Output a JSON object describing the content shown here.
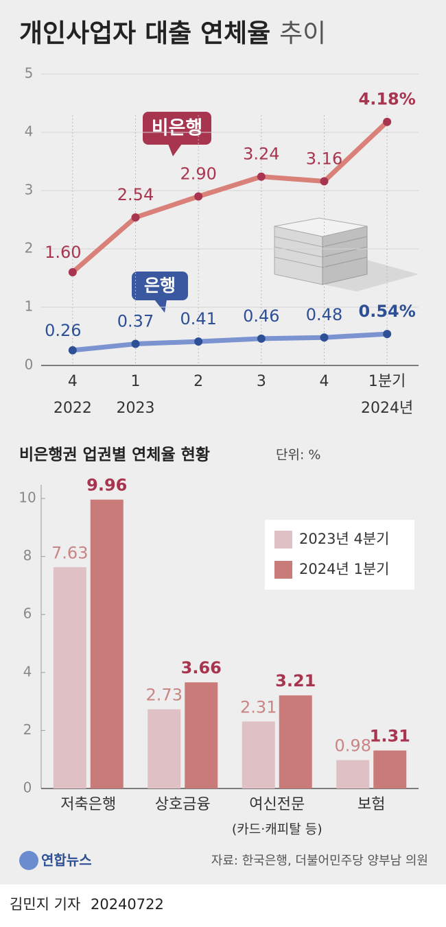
{
  "title": "개인사업자 대출 연체율",
  "title_suffix": "추이",
  "chart_data": [
    {
      "type": "line",
      "categories": [
        "4",
        "1",
        "2",
        "3",
        "4",
        "1분기"
      ],
      "category_sublabels": [
        "2022",
        "2023",
        null,
        null,
        null,
        "2024년"
      ],
      "ylim": [
        0,
        5
      ],
      "yticks": [
        0,
        1,
        2,
        3,
        4,
        5
      ],
      "grid": true,
      "series": [
        {
          "name": "비은행",
          "color": "#d98079",
          "marker_color": "#a8354f",
          "values": [
            1.6,
            2.54,
            2.9,
            3.24,
            3.16,
            4.18
          ],
          "value_labels": [
            "1.60",
            "2.54",
            "2.90",
            "3.24",
            "3.16",
            "4.18%"
          ]
        },
        {
          "name": "은행",
          "color": "#7b93d0",
          "marker_color": "#2d4f95",
          "values": [
            0.26,
            0.37,
            0.41,
            0.46,
            0.48,
            0.54
          ],
          "value_labels": [
            "0.26",
            "0.37",
            "0.41",
            "0.46",
            "0.48",
            "0.54%"
          ]
        }
      ]
    },
    {
      "type": "bar",
      "title": "비은행권 업권별 연체율 현황",
      "unit": "단위: %",
      "categories": [
        "저축은행",
        "상호금융",
        "여신전문",
        "보험"
      ],
      "category_sublabels": [
        null,
        null,
        "(카드·캐피탈 등)",
        null
      ],
      "ylim": [
        0,
        10
      ],
      "yticks": [
        0,
        2,
        4,
        6,
        8,
        10
      ],
      "legend": "upper right",
      "series": [
        {
          "name": "2023년 4분기",
          "color": "#dfc0c4",
          "label_color": "#c98584",
          "values": [
            7.63,
            2.73,
            2.31,
            0.98
          ]
        },
        {
          "name": "2024년 1분기",
          "color": "#c97b7a",
          "label_color": "#a8354f",
          "values": [
            9.96,
            3.66,
            3.21,
            1.31
          ]
        }
      ]
    }
  ],
  "logo": "연합뉴스",
  "source": "자료: 한국은행, 더불어민주당 양부남 의원",
  "byline": "김민지 기자",
  "date": "20240722"
}
